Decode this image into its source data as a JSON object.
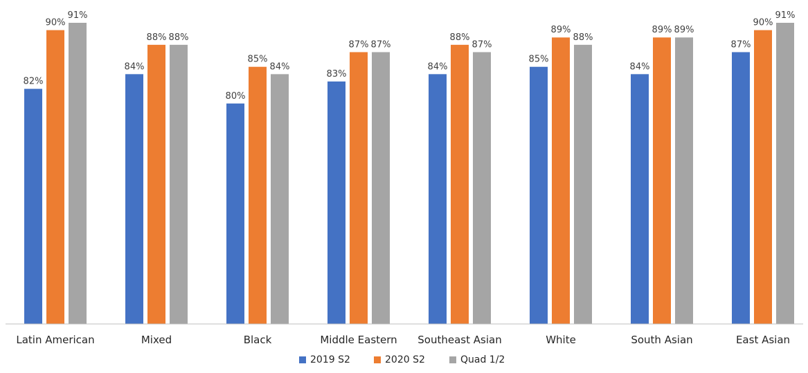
{
  "chart_data": {
    "type": "bar",
    "categories": [
      "Latin American",
      "Mixed",
      "Black",
      "Middle Eastern",
      "Southeast Asian",
      "White",
      "South Asian",
      "East Asian"
    ],
    "series": [
      {
        "name": "2019 S2",
        "color": "#4472c4",
        "values": [
          82,
          84,
          80,
          83,
          84,
          85,
          84,
          87
        ],
        "labels": [
          "82%",
          "84%",
          "80%",
          "83%",
          "84%",
          "85%",
          "84%",
          "87%"
        ]
      },
      {
        "name": "2020 S2",
        "color": "#ed7d31",
        "values": [
          90,
          88,
          85,
          87,
          88,
          89,
          89,
          90
        ],
        "labels": [
          "90%",
          "88%",
          "85%",
          "87%",
          "88%",
          "89%",
          "89%",
          "90%"
        ]
      },
      {
        "name": "Quad 1/2",
        "color": "#a5a5a5",
        "values": [
          91,
          88,
          84,
          87,
          87,
          88,
          89,
          91
        ],
        "labels": [
          "91%",
          "88%",
          "84%",
          "87%",
          "87%",
          "88%",
          "89%",
          "91%"
        ]
      }
    ],
    "title": "",
    "xlabel": "",
    "ylabel": "",
    "ylim": [
      50,
      91
    ],
    "grid": false,
    "legend_position": "bottom-center"
  }
}
